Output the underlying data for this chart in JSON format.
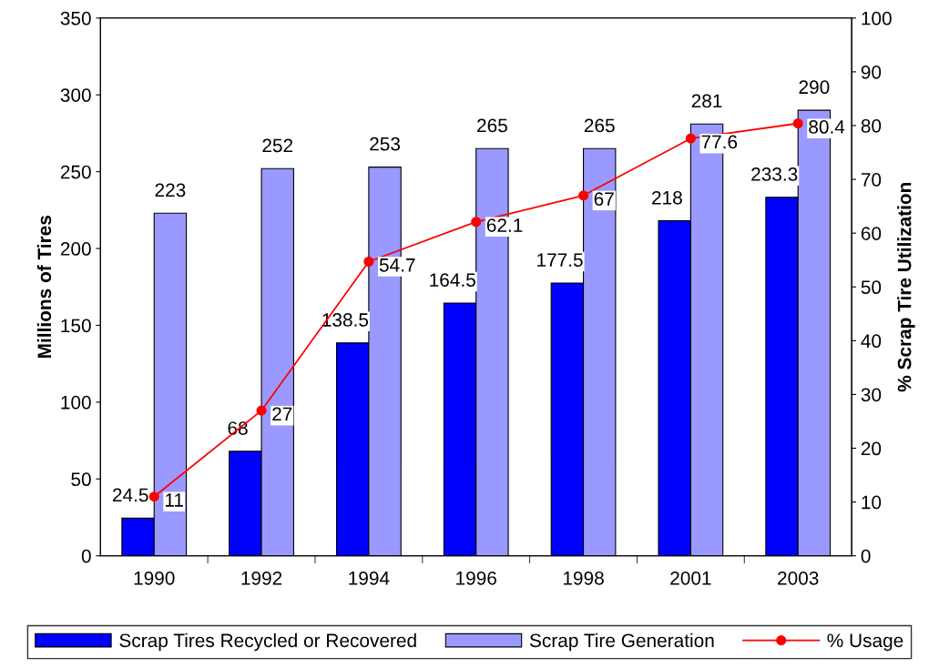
{
  "chart_data": {
    "type": "bar",
    "ylabel": "Millions of Tires",
    "y2label": "% Scrap Tire Utilization",
    "categories": [
      "1990",
      "1992",
      "1994",
      "1996",
      "1998",
      "2001",
      "2003"
    ],
    "series": [
      {
        "name": "Scrap Tires Recycled or Recovered",
        "color": "#0000ff",
        "values": [
          24.5,
          68,
          138.5,
          164.5,
          177.5,
          218,
          233.3
        ]
      },
      {
        "name": "Scrap Tire Generation",
        "color": "#9999ff",
        "values": [
          223,
          252,
          253,
          265,
          265,
          281,
          290
        ]
      },
      {
        "name": "% Usage",
        "type": "line",
        "axis": "y2",
        "color": "#ff0000",
        "marker": "circle",
        "values": [
          11,
          27,
          54.7,
          62.1,
          67,
          77.6,
          80.4
        ]
      }
    ],
    "ylim": [
      0,
      350
    ],
    "yticks": [
      0,
      50,
      100,
      150,
      200,
      250,
      300,
      350
    ],
    "y2lim": [
      0,
      100
    ],
    "y2ticks": [
      0,
      10,
      20,
      30,
      40,
      50,
      60,
      70,
      80,
      90,
      100
    ],
    "data_labels": true,
    "grid": false,
    "legend": "bottom"
  }
}
